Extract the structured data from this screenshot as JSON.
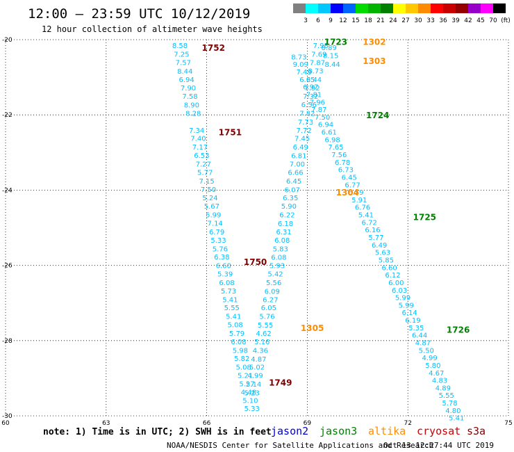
{
  "header": {
    "title": "12:00 – 23:59 UTC 10/12/2019",
    "subtitle": "12 hour collection of altimeter wave heights"
  },
  "color_scale": {
    "colors": [
      "#808080",
      "#00ffff",
      "#00c8ff",
      "#0000ff",
      "#0064ff",
      "#00dc00",
      "#00b400",
      "#008000",
      "#ffff00",
      "#ffc800",
      "#ff8c00",
      "#ff0000",
      "#c80000",
      "#960000",
      "#9600c8",
      "#ff00ff",
      "#000000"
    ],
    "labels": [
      "3",
      "6",
      "9",
      "12",
      "15",
      "18",
      "21",
      "24",
      "27",
      "30",
      "33",
      "36",
      "39",
      "42",
      "45",
      "70",
      "(ft)"
    ]
  },
  "footer": {
    "note": "note: 1) Time is in UTC; 2) SWH is in feet",
    "satellites": [
      {
        "name": "jason2",
        "color": "#0000cc"
      },
      {
        "name": "jason3",
        "color": "#008000"
      },
      {
        "name": "altika",
        "color": "#ff8c00"
      },
      {
        "name": "cryosat",
        "color": "#cc0000"
      },
      {
        "name": "s3a",
        "color": "#800000"
      }
    ],
    "credit": "NOAA/NESDIS Center for Satellite Applications and Research",
    "timestamp": "Oct 13 12:27:44 UTC 2019"
  },
  "chart_data": {
    "type": "scatter",
    "xlim": [
      60,
      75
    ],
    "ylim": [
      -30,
      -20
    ],
    "x_ticks": [
      "60",
      "63",
      "66",
      "69",
      "72",
      "75"
    ],
    "y_ticks": [
      "-20",
      "-22",
      "-24",
      "-26",
      "-28",
      "-30"
    ],
    "grid": true,
    "value_color": "#00bfff",
    "tracks": [
      {
        "points": [
          [
            65.2,
            -20.15,
            "8.58"
          ],
          [
            65.25,
            -20.38,
            "7.25"
          ],
          [
            65.3,
            -20.6,
            "7.57"
          ],
          [
            65.35,
            -20.83,
            "8.44"
          ],
          [
            65.4,
            -21.05,
            "6.94"
          ],
          [
            65.45,
            -21.28,
            "7.90"
          ],
          [
            65.5,
            -21.5,
            "7.58"
          ],
          [
            65.55,
            -21.73,
            "8.90"
          ],
          [
            65.6,
            -21.95,
            "8.28"
          ],
          [
            65.7,
            -22.4,
            "7.34"
          ],
          [
            65.75,
            -22.62,
            "7.40"
          ],
          [
            65.8,
            -22.85,
            "7.17"
          ],
          [
            65.85,
            -23.07,
            "6.53"
          ],
          [
            65.9,
            -23.3,
            "7.27"
          ],
          [
            65.95,
            -23.52,
            "5.77"
          ],
          [
            66.0,
            -23.75,
            "7.15"
          ],
          [
            66.05,
            -23.97,
            "7.50"
          ],
          [
            66.1,
            -24.2,
            "5.24"
          ],
          [
            66.15,
            -24.42,
            "5.67"
          ],
          [
            66.2,
            -24.65,
            "5.99"
          ],
          [
            66.25,
            -24.87,
            "7.14"
          ],
          [
            66.3,
            -25.1,
            "6.79"
          ],
          [
            66.35,
            -25.32,
            "5.33"
          ],
          [
            66.4,
            -25.55,
            "5.76"
          ],
          [
            66.45,
            -25.77,
            "6.38"
          ],
          [
            66.5,
            -26.0,
            "6.60"
          ],
          [
            66.55,
            -26.22,
            "5.39"
          ],
          [
            66.6,
            -26.45,
            "6.08"
          ],
          [
            66.65,
            -26.67,
            "5.73"
          ],
          [
            66.7,
            -26.9,
            "5.41"
          ],
          [
            66.75,
            -27.12,
            "5.55"
          ],
          [
            66.8,
            -27.35,
            "5.41"
          ],
          [
            66.85,
            -27.57,
            "5.08"
          ],
          [
            66.9,
            -27.8,
            "5.79"
          ],
          [
            66.95,
            -28.02,
            "6.08"
          ],
          [
            67.0,
            -28.25,
            "5.98"
          ],
          [
            67.05,
            -28.47,
            "5.82"
          ],
          [
            67.1,
            -28.7,
            "5.08"
          ],
          [
            67.15,
            -28.92,
            "5.21"
          ],
          [
            67.2,
            -29.14,
            "5.27"
          ],
          [
            67.25,
            -29.36,
            "4.48"
          ],
          [
            67.3,
            -29.58,
            "5.10"
          ],
          [
            67.35,
            -29.8,
            "5.33"
          ]
        ]
      },
      {
        "points": [
          [
            68.75,
            -20.45,
            "8.73"
          ],
          [
            68.8,
            -20.65,
            "9.09"
          ],
          [
            68.9,
            -20.85,
            "7.49"
          ],
          [
            69.0,
            -21.05,
            "6.65"
          ],
          [
            69.1,
            -21.25,
            "6.97"
          ],
          [
            69.2,
            -21.45,
            "7.81"
          ],
          [
            69.3,
            -21.65,
            "7.96"
          ],
          [
            69.35,
            -21.85,
            "7.87"
          ],
          [
            69.45,
            -22.05,
            "7.50"
          ],
          [
            69.55,
            -22.25,
            "6.94"
          ],
          [
            69.65,
            -22.45,
            "6.61"
          ],
          [
            69.75,
            -22.65,
            "6.98"
          ],
          [
            69.85,
            -22.85,
            "7.65"
          ],
          [
            69.95,
            -23.05,
            "7.56"
          ],
          [
            70.05,
            -23.25,
            "6.78"
          ],
          [
            70.15,
            -23.45,
            "6.73"
          ],
          [
            70.25,
            -23.65,
            "6.45"
          ],
          [
            70.35,
            -23.85,
            "6.77"
          ],
          [
            70.45,
            -24.05,
            "6.59"
          ],
          [
            70.55,
            -24.25,
            "5.91"
          ],
          [
            70.65,
            -24.45,
            "6.76"
          ],
          [
            70.75,
            -24.65,
            "5.41"
          ],
          [
            70.85,
            -24.85,
            "6.72"
          ],
          [
            70.95,
            -25.05,
            "6.16"
          ],
          [
            71.05,
            -25.25,
            "5.77"
          ],
          [
            71.15,
            -25.45,
            "6.49"
          ],
          [
            71.25,
            -25.65,
            "5.63"
          ],
          [
            71.35,
            -25.85,
            "5.85"
          ],
          [
            71.45,
            -26.05,
            "6.60"
          ],
          [
            71.55,
            -26.25,
            "6.12"
          ],
          [
            71.65,
            -26.45,
            "6.00"
          ],
          [
            71.75,
            -26.65,
            "6.03"
          ],
          [
            71.85,
            -26.85,
            "5.99"
          ],
          [
            71.95,
            -27.05,
            "5.99"
          ],
          [
            72.05,
            -27.25,
            "6.14"
          ],
          [
            72.15,
            -27.45,
            "6.19"
          ],
          [
            72.25,
            -27.65,
            "5.35"
          ],
          [
            72.35,
            -27.85,
            "6.44"
          ],
          [
            72.45,
            -28.05,
            "4.87"
          ],
          [
            72.55,
            -28.25,
            "5.50"
          ],
          [
            72.65,
            -28.45,
            "4.99"
          ],
          [
            72.75,
            -28.65,
            "5.80"
          ],
          [
            72.85,
            -28.85,
            "4.67"
          ],
          [
            72.95,
            -29.05,
            "4.83"
          ],
          [
            73.05,
            -29.25,
            "4.89"
          ],
          [
            73.15,
            -29.45,
            "5.55"
          ],
          [
            73.25,
            -29.65,
            "5.78"
          ],
          [
            73.35,
            -29.85,
            "4.80"
          ],
          [
            73.45,
            -30.05,
            "5.41"
          ]
        ]
      },
      {
        "points": [
          [
            69.4,
            -20.15,
            "7.98"
          ],
          [
            69.35,
            -20.38,
            "7.69"
          ],
          [
            69.3,
            -20.6,
            "7.87"
          ],
          [
            69.25,
            -20.82,
            "8.73"
          ],
          [
            69.2,
            -21.05,
            "8.44"
          ],
          [
            69.15,
            -21.28,
            "7.92"
          ],
          [
            69.1,
            -21.5,
            "7.32"
          ],
          [
            69.05,
            -21.72,
            "6.56"
          ],
          [
            69.0,
            -21.95,
            "7.82"
          ],
          [
            68.95,
            -22.18,
            "7.73"
          ],
          [
            68.9,
            -22.4,
            "7.72"
          ],
          [
            68.85,
            -22.62,
            "7.45"
          ],
          [
            68.8,
            -22.85,
            "6.49"
          ],
          [
            68.75,
            -23.08,
            "6.81"
          ],
          [
            68.7,
            -23.3,
            "7.00"
          ],
          [
            68.65,
            -23.52,
            "6.66"
          ],
          [
            68.6,
            -23.75,
            "6.45"
          ],
          [
            68.55,
            -23.98,
            "6.07"
          ],
          [
            68.5,
            -24.2,
            "6.35"
          ],
          [
            68.45,
            -24.42,
            "5.90"
          ],
          [
            68.4,
            -24.65,
            "6.22"
          ],
          [
            68.35,
            -24.88,
            "6.18"
          ],
          [
            68.3,
            -25.1,
            "6.31"
          ],
          [
            68.25,
            -25.32,
            "6.08"
          ],
          [
            68.2,
            -25.55,
            "5.83"
          ],
          [
            68.15,
            -25.78,
            "6.08"
          ],
          [
            68.1,
            -26.0,
            "5.93"
          ],
          [
            68.05,
            -26.22,
            "5.42"
          ],
          [
            68.0,
            -26.45,
            "5.56"
          ],
          [
            67.95,
            -26.68,
            "6.09"
          ],
          [
            67.9,
            -26.9,
            "6.27"
          ],
          [
            67.85,
            -27.12,
            "6.05"
          ],
          [
            67.8,
            -27.35,
            "5.76"
          ],
          [
            67.75,
            -27.58,
            "5.55"
          ],
          [
            67.7,
            -27.8,
            "4.62"
          ],
          [
            67.65,
            -28.02,
            "5.16"
          ],
          [
            67.6,
            -28.25,
            "4.36"
          ],
          [
            67.55,
            -28.48,
            "4.87"
          ],
          [
            67.5,
            -28.7,
            "5.02"
          ],
          [
            67.45,
            -28.92,
            "4.99"
          ],
          [
            67.4,
            -29.15,
            "5.14"
          ],
          [
            67.35,
            -29.38,
            "5.23"
          ]
        ]
      },
      {
        "points": [
          [
            69.65,
            -20.2,
            "8.89"
          ],
          [
            69.7,
            -20.42,
            "8.15"
          ],
          [
            69.75,
            -20.65,
            "8.44"
          ]
        ]
      }
    ],
    "pass_labels": [
      {
        "text": "1752",
        "x": 66.2,
        "y": -20.2,
        "color": "#800000"
      },
      {
        "text": "1751",
        "x": 66.7,
        "y": -22.45,
        "color": "#800000"
      },
      {
        "text": "1750",
        "x": 67.45,
        "y": -25.9,
        "color": "#800000"
      },
      {
        "text": "1749",
        "x": 68.2,
        "y": -29.1,
        "color": "#800000"
      },
      {
        "text": "1723",
        "x": 69.85,
        "y": -20.05,
        "color": "#008000"
      },
      {
        "text": "1724",
        "x": 71.1,
        "y": -22.0,
        "color": "#008000"
      },
      {
        "text": "1725",
        "x": 72.5,
        "y": -24.7,
        "color": "#008000"
      },
      {
        "text": "1726",
        "x": 73.5,
        "y": -27.7,
        "color": "#008000"
      },
      {
        "text": "1302",
        "x": 71.0,
        "y": -20.05,
        "color": "#ff8c00"
      },
      {
        "text": "1303",
        "x": 71.0,
        "y": -20.55,
        "color": "#ff8c00"
      },
      {
        "text": "1304",
        "x": 70.2,
        "y": -24.05,
        "color": "#ff8c00"
      },
      {
        "text": "1305",
        "x": 69.15,
        "y": -27.65,
        "color": "#ff8c00"
      }
    ]
  }
}
